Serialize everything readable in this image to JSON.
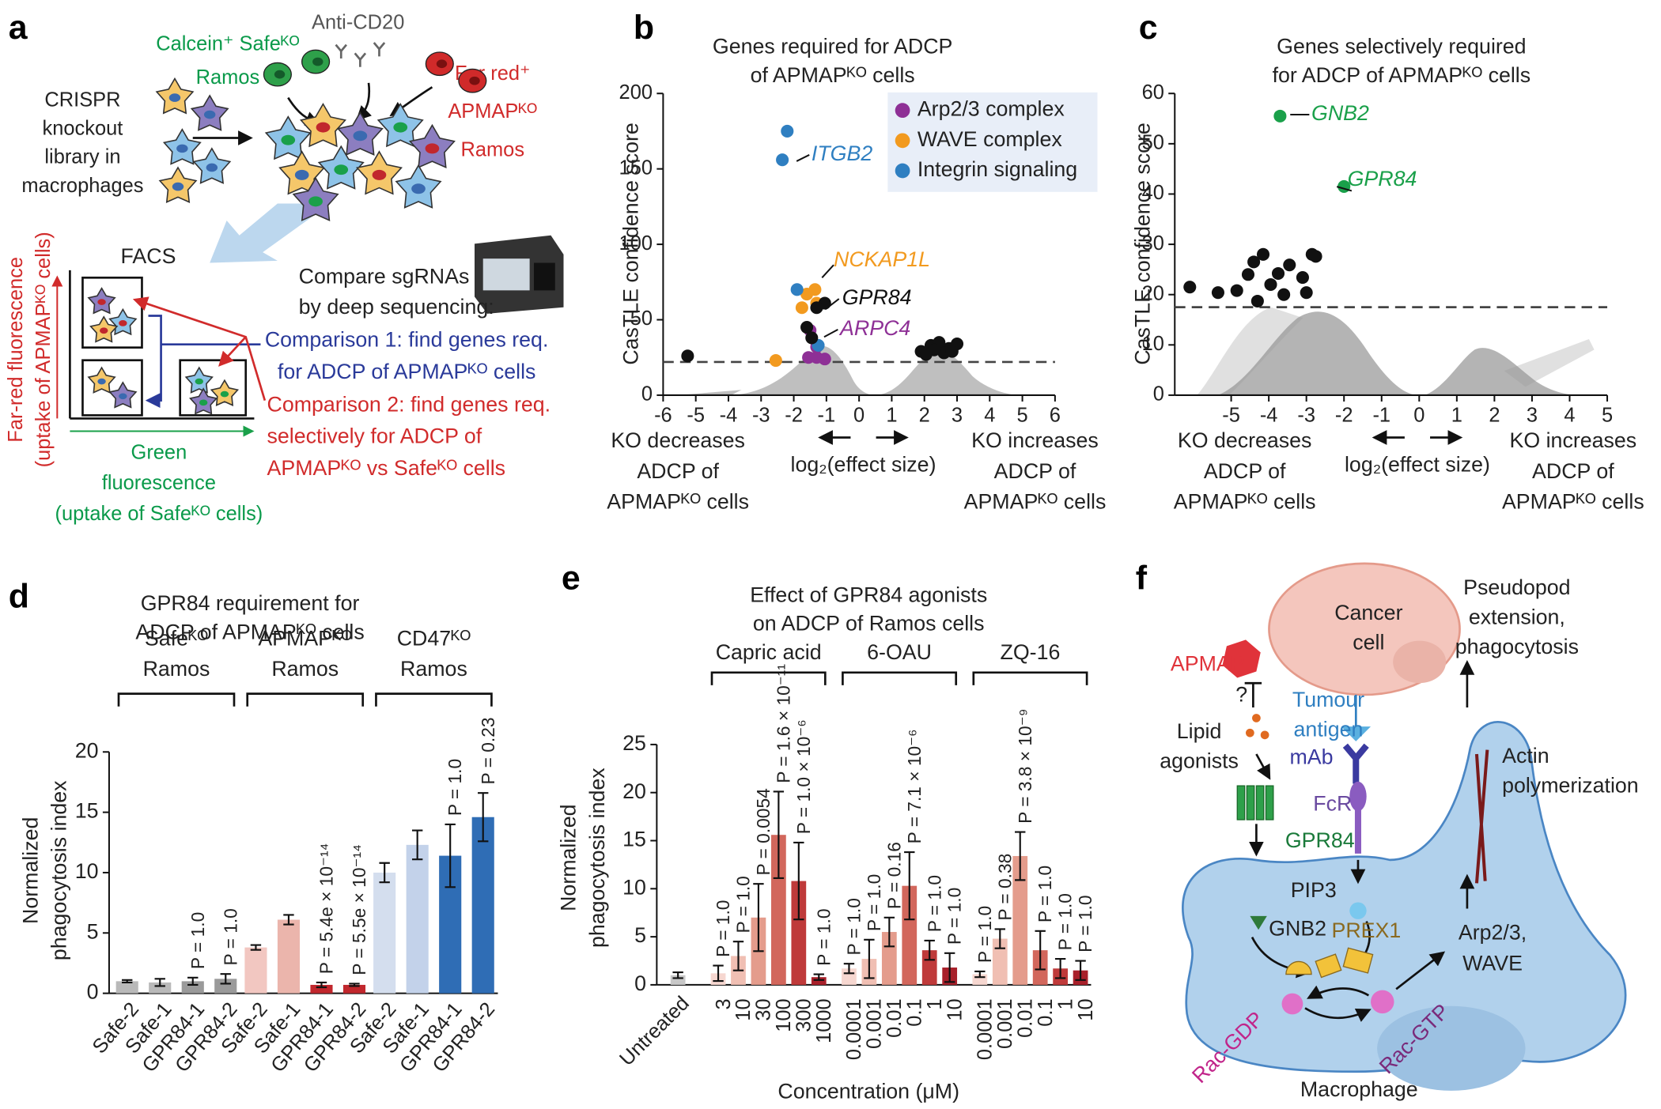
{
  "panel_labels": [
    "a",
    "b",
    "c",
    "d",
    "e",
    "f"
  ],
  "diagram_a": {
    "green_cells": [
      "Calcein⁺ Safeᴷᴼ",
      "Ramos"
    ],
    "antibody": "Anti-CD20",
    "red_cells": [
      "Far red⁺",
      "APMAPᴷᴼ",
      "Ramos"
    ],
    "library": [
      "CRISPR",
      "knockout",
      "library in",
      "macrophages"
    ],
    "facs": "FACS",
    "sequencing": [
      "Compare sgRNAs",
      "by deep sequencing:"
    ],
    "comparison_1": [
      "Comparison 1: find genes req.",
      "for ADCP of APMAPᴷᴼ cells"
    ],
    "comparison_2": [
      "Comparison 2: find genes req.",
      "selectively for ADCP of",
      "APMAPᴷᴼ vs Safeᴷᴼ cells"
    ],
    "y_axis": [
      "Far-red fluorescence",
      "(uptake of APMAPᴷᴼ cells)"
    ],
    "x_axis": [
      "Green",
      "fluorescence",
      "(uptake of Safeᴷᴼ cells)"
    ]
  },
  "diagram_f": {
    "cancer_cell": [
      "Cancer",
      "cell"
    ],
    "pseudopod": [
      "Pseudopod",
      "extension,",
      "phagocytosis"
    ],
    "apmap": "APMAP",
    "question": "?",
    "tumour_antigen": [
      "Tumour",
      "antigen"
    ],
    "lipid_agonists": [
      "Lipid",
      "agonists"
    ],
    "mab": "mAb",
    "fcr": "FcR",
    "actin": [
      "Actin",
      "polymerization"
    ],
    "gpr84": "GPR84",
    "pip3": "PIP3",
    "gnb2": "GNB2",
    "prex1": "PREX1",
    "arp_wave": [
      "Arp2/3,",
      "WAVE"
    ],
    "rac_gdp": "Rac-GDP",
    "rac_gtp": "Rac-GTP",
    "macrophage": "Macrophage"
  },
  "chart_data": [
    {
      "type": "scatter",
      "title": [
        "Genes required for ADCP",
        "of APMAPᴷᴼ cells"
      ],
      "ylabel": "CasTLE confidence score",
      "xlabel": "log₂(effect size)",
      "side_labels": {
        "left": [
          "KO decreases",
          "ADCP of",
          "APMAPᴷᴼ cells"
        ],
        "right": [
          "KO increases",
          "ADCP of",
          "APMAPᴷᴼ cells"
        ]
      },
      "xlim": [
        -6,
        6
      ],
      "xticks": [
        -6,
        -5,
        -4,
        -3,
        -2,
        -1,
        0,
        1,
        2,
        3,
        4,
        5,
        6
      ],
      "ylim": [
        0,
        200
      ],
      "yticks": [
        0,
        50,
        100,
        150,
        200
      ],
      "threshold": 22,
      "legend": "upper right",
      "series": [
        {
          "name": "Arp2/3 complex",
          "color": "#8e3096",
          "x": [
            -1.5,
            -1.3,
            -1.55,
            -1.3,
            -1.05
          ],
          "values": [
            43,
            32,
            25,
            25,
            24
          ]
        },
        {
          "name": "WAVE complex",
          "color": "#f29a1f",
          "x": [
            -1.6,
            -1.35,
            -1.3,
            -1.75,
            -2.55
          ],
          "values": [
            67,
            70,
            61,
            58,
            23
          ]
        },
        {
          "name": "Integrin signaling",
          "color": "#2f7fc1",
          "x": [
            -2.2,
            -2.35,
            -1.9,
            -1.25
          ],
          "values": [
            175,
            156,
            70,
            33
          ]
        },
        {
          "color": "#111111",
          "x": [
            -1.05,
            -1.3,
            -1.6,
            -1.45,
            -5.25,
            1.9,
            2.2,
            2.45,
            2.75,
            3.0,
            2.6,
            2.3,
            2.05,
            2.85
          ],
          "values": [
            61,
            58,
            45,
            38,
            26,
            29,
            33,
            35,
            31,
            34,
            28,
            30,
            27,
            29
          ]
        }
      ],
      "annotations": [
        {
          "text": "ITGB2",
          "color": "#2f7fc1"
        },
        {
          "text": "NCKAP1L",
          "color": "#f29a1f"
        },
        {
          "text": "GPR84",
          "color": "#111111"
        },
        {
          "text": "ARPC4",
          "color": "#8e3096"
        }
      ]
    },
    {
      "type": "scatter",
      "title": [
        "Genes selectively required",
        "for ADCP of APMAPᴷᴼ cells"
      ],
      "ylabel": "CasTLE confidence score",
      "xlabel": "log₂(effect size)",
      "side_labels": {
        "left": [
          "KO decreases",
          "ADCP of",
          "APMAPᴷᴼ cells"
        ],
        "right": [
          "KO increases",
          "ADCP of",
          "APMAPᴷᴼ cells"
        ]
      },
      "xlim": [
        -6.5,
        5
      ],
      "xticks": [
        -5,
        -4,
        -3,
        -2,
        -1,
        0,
        1,
        2,
        3,
        4,
        5
      ],
      "ylim": [
        0,
        60
      ],
      "yticks": [
        0,
        10,
        20,
        30,
        40,
        50,
        60
      ],
      "threshold": 17.5,
      "series": [
        {
          "color": "#1aa04a",
          "x": [
            -3.7,
            -2.0
          ],
          "values": [
            55.5,
            41.5
          ]
        },
        {
          "color": "#111111",
          "x": [
            -6.1,
            -5.35,
            -4.85,
            -4.55,
            -4.4,
            -4.15,
            -3.95,
            -3.75,
            -3.45,
            -3.1,
            -3.0,
            -2.85,
            -2.75,
            -3.6,
            -4.3
          ],
          "values": [
            21.5,
            20.4,
            20.8,
            24,
            26.5,
            28,
            22,
            24.2,
            25.9,
            23.4,
            20.4,
            28,
            27.6,
            20,
            18.7
          ]
        }
      ],
      "annotations": [
        {
          "text": "GNB2",
          "color": "#1aa04a"
        },
        {
          "text": "GPR84",
          "color": "#1aa04a"
        }
      ]
    },
    {
      "type": "bar",
      "title": [
        "GPR84 requirement for",
        "ADCP of APMAPᴷᴼ cells"
      ],
      "ylabel": [
        "Normalized",
        "phagocytosis index"
      ],
      "groups": [
        [
          "Safeᴷᴼ",
          "Ramos"
        ],
        [
          "APMAPᴷᴼ",
          "Ramos"
        ],
        [
          "CD47ᴷᴼ",
          "Ramos"
        ]
      ],
      "categories": [
        "Safe-2",
        "Safe-1",
        "GPR84-1",
        "GPR84-2",
        "Safe-2",
        "Safe-1",
        "GPR84-1",
        "GPR84-2",
        "Safe-2",
        "Safe-1",
        "GPR84-1",
        "GPR84-2"
      ],
      "values": [
        1.0,
        0.9,
        1.0,
        1.2,
        3.8,
        6.1,
        0.7,
        0.7,
        10.0,
        12.3,
        11.4,
        14.6
      ],
      "errors": [
        0.1,
        0.3,
        0.3,
        0.4,
        0.2,
        0.4,
        0.2,
        0.1,
        0.8,
        1.2,
        2.6,
        2.0
      ],
      "colors": [
        "#b9b9b9",
        "#b9b9b9",
        "#9a9a9a",
        "#9a9a9a",
        "#f2c7c1",
        "#ebb5ac",
        "#c1272d",
        "#c1272d",
        "#d4deee",
        "#c3d2ea",
        "#2f6db5",
        "#2f6db5"
      ],
      "p_values": [
        null,
        null,
        "P = 1.0",
        "P = 1.0",
        null,
        null,
        "P = 5.4e × 10⁻¹⁴",
        "P = 5.5e × 10⁻¹⁴",
        null,
        null,
        "P = 1.0",
        "P = 0.23"
      ],
      "ylim": [
        0,
        20
      ],
      "yticks": [
        0,
        5,
        10,
        15,
        20
      ]
    },
    {
      "type": "bar",
      "title": [
        "Effect of GPR84 agonists",
        "on ADCP of Ramos cells"
      ],
      "ylabel": [
        "Normalized",
        "phagocytosis index"
      ],
      "xlabel": "Concentration (μM)",
      "groups": [
        "Capric acid",
        "6-OAU",
        "ZQ-16"
      ],
      "categories": [
        "Untreated",
        "3",
        "10",
        "30",
        "100",
        "300",
        "1000",
        "0.0001",
        "0.001",
        "0.01",
        "0.1",
        "1",
        "10",
        "0.0001",
        "0.001",
        "0.01",
        "0.1",
        "1",
        "10"
      ],
      "values": [
        1.0,
        1.2,
        3.0,
        7.0,
        15.6,
        10.8,
        0.8,
        1.7,
        2.7,
        5.5,
        10.3,
        3.6,
        1.8,
        1.1,
        4.8,
        13.4,
        3.6,
        1.7,
        1.5
      ],
      "errors": [
        0.3,
        0.8,
        1.5,
        3.5,
        4.5,
        4.0,
        0.3,
        0.5,
        2.0,
        1.5,
        3.5,
        1.0,
        1.5,
        0.3,
        1.0,
        2.5,
        2.0,
        1.0,
        1.0
      ],
      "colors": [
        "#c8c8c8",
        "#f6d7d0",
        "#f0bfb3",
        "#e49c8c",
        "#d2675c",
        "#bf3a3a",
        "#a8202a",
        "#f6d7d0",
        "#f0bfb3",
        "#e49c8c",
        "#d2675c",
        "#bf3a3a",
        "#a8202a",
        "#f6d7d0",
        "#f0bfb3",
        "#e49c8c",
        "#d2675c",
        "#bf3a3a",
        "#a8202a"
      ],
      "p_values": [
        null,
        "P = 1.0",
        "P = 1.0",
        "P = 0.0054",
        "P = 1.6 × 10⁻¹¹",
        "P = 1.0 × 10⁻⁶",
        "P = 1.0",
        "P = 1.0",
        "P = 1.0",
        "P = 0.16",
        "P = 7.1 × 10⁻⁶",
        "P = 1.0",
        "P = 1.0",
        "P = 1.0",
        "P = 0.38",
        "P = 3.8 × 10⁻⁹",
        "P = 1.0",
        "P = 1.0",
        "P = 1.0"
      ],
      "ylim": [
        0,
        25
      ],
      "yticks": [
        0,
        5,
        10,
        15,
        20,
        25
      ]
    }
  ]
}
